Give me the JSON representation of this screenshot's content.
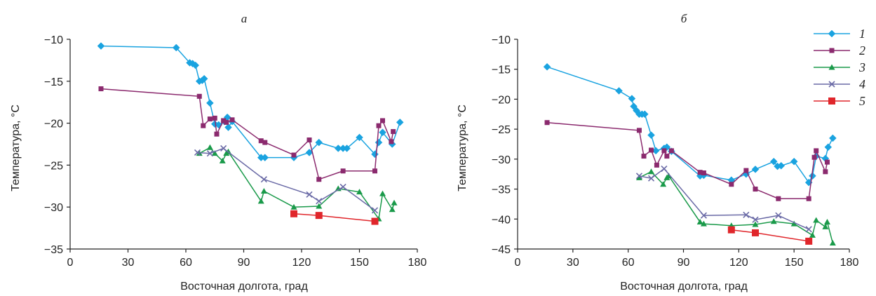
{
  "chart_data": [
    {
      "type": "line",
      "title": "а",
      "xlabel": "Восточная долгота, град",
      "ylabel": "Температура, °С",
      "xlim": [
        0,
        180
      ],
      "ylim": [
        -35,
        -10
      ],
      "xticks": [
        "0",
        "30",
        "60",
        "90",
        "120",
        "150",
        "180"
      ],
      "yticks": [
        "−35",
        "−30",
        "−25",
        "−20",
        "−15",
        "−10"
      ],
      "grid": false,
      "series": [
        {
          "name": "1",
          "color": "#1aa3e0",
          "marker": "diamond",
          "x": [
            16,
            55,
            62,
            63.5,
            65,
            67,
            68.5,
            69.5,
            72.5,
            75,
            77,
            80,
            81.5,
            82,
            84,
            99,
            101,
            116,
            124,
            129,
            139,
            141.5,
            143.5,
            150,
            158,
            160,
            162,
            167,
            171
          ],
          "y": [
            -10.8,
            -11,
            -12.8,
            -12.9,
            -13.1,
            -15,
            -14.9,
            -14.7,
            -17.6,
            -20.1,
            -20.2,
            -19.8,
            -19.3,
            -20.5,
            -19.8,
            -24.1,
            -24.1,
            -24.1,
            -23.5,
            -22.3,
            -23,
            -23,
            -23,
            -21.7,
            -23.7,
            -22.3,
            -21.1,
            -22.5,
            -19.9
          ]
        },
        {
          "name": "2",
          "color": "#8b2a6e",
          "marker": "square",
          "x": [
            16,
            67,
            69,
            72.5,
            75,
            76,
            79.5,
            81,
            84,
            99,
            101,
            116,
            124,
            129,
            141.5,
            158,
            160,
            162,
            166.5,
            167.5
          ],
          "y": [
            -15.9,
            -16.8,
            -20.3,
            -19.5,
            -19.4,
            -21.3,
            -19.7,
            -19.9,
            -19.6,
            -22.1,
            -22.3,
            -23.8,
            -22,
            -26.7,
            -25.7,
            -25.7,
            -20.3,
            -19.7,
            -22.2,
            -21
          ],
          "values_note": ""
        },
        {
          "name": "3",
          "color": "#1a9a4a",
          "marker": "triangle",
          "x": [
            67,
            72.5,
            75,
            79,
            81,
            82,
            99,
            100.5,
            116,
            129,
            139,
            150,
            160,
            162,
            167,
            168
          ],
          "y": [
            -23.6,
            -22.9,
            -23.6,
            -24.5,
            -23.6,
            -23.4,
            -29.3,
            -28.1,
            -30,
            -29.9,
            -27.8,
            -28.2,
            -31.4,
            -28.4,
            -30.3,
            -29.5
          ]
        },
        {
          "name": "4",
          "color": "#6a6aa6",
          "marker": "x",
          "x": [
            66,
            72.5,
            79.5,
            100.5,
            124,
            129,
            141.5,
            158
          ],
          "y": [
            -23.5,
            -23.6,
            -23,
            -26.7,
            -28.5,
            -29.3,
            -27.6,
            -30.4
          ]
        },
        {
          "name": "5",
          "color": "#e0262b",
          "marker": "square-big",
          "x": [
            116,
            129,
            158
          ],
          "y": [
            -30.8,
            -31,
            -31.7
          ]
        }
      ]
    },
    {
      "type": "line",
      "title": "б",
      "xlabel": "Восточная долгота, град",
      "ylabel": "Температура, °С",
      "xlim": [
        0,
        180
      ],
      "ylim": [
        -45,
        -10
      ],
      "xticks": [
        "0",
        "30",
        "60",
        "90",
        "120",
        "150",
        "180"
      ],
      "yticks": [
        "−45",
        "−40",
        "−35",
        "−30",
        "−25",
        "−20",
        "−15",
        "−10"
      ],
      "grid": false,
      "legend_position": "top-right",
      "series": [
        {
          "name": "1",
          "color": "#1aa3e0",
          "marker": "diamond",
          "x": [
            16,
            55,
            62,
            63,
            64.5,
            66,
            67.5,
            69,
            72.5,
            75,
            79.5,
            81,
            83.5,
            99,
            101,
            116,
            124,
            129,
            139,
            141,
            143,
            150,
            158,
            160,
            162,
            167,
            168.5,
            171
          ],
          "y": [
            -14.6,
            -18.6,
            -19.9,
            -21.2,
            -21.9,
            -22.5,
            -22.5,
            -22.5,
            -26,
            -28.6,
            -28.2,
            -28,
            -28.7,
            -32.8,
            -32.7,
            -33.5,
            -32.5,
            -31.7,
            -30.4,
            -31.2,
            -31.1,
            -30.4,
            -33.9,
            -32.8,
            -29.5,
            -29.9,
            -28,
            -26.5
          ]
        },
        {
          "name": "2",
          "color": "#8b2a6e",
          "marker": "square",
          "x": [
            16,
            66,
            68.5,
            72.5,
            75.5,
            79.5,
            81,
            83.5,
            99,
            101,
            116,
            124,
            129,
            141.5,
            158,
            161,
            162,
            167,
            168
          ],
          "y": [
            -23.9,
            -25.2,
            -29.5,
            -28.5,
            -31,
            -28.6,
            -29.5,
            -28.6,
            -32.2,
            -32.3,
            -34.2,
            -31.9,
            -35,
            -36.6,
            -36.6,
            -29.7,
            -28.6,
            -32.1,
            -30.5
          ]
        },
        {
          "name": "3",
          "color": "#1a9a4a",
          "marker": "triangle",
          "x": [
            66,
            72.5,
            79,
            81,
            82,
            99,
            101,
            116,
            129,
            139,
            150,
            160,
            162,
            167,
            168,
            171
          ],
          "y": [
            -33.1,
            -32.1,
            -34.2,
            -33.1,
            -32.8,
            -40.5,
            -40.8,
            -41.1,
            -40.9,
            -40.4,
            -40.8,
            -42.7,
            -40.2,
            -41.3,
            -40.5,
            -44
          ]
        },
        {
          "name": "4",
          "color": "#6a6aa6",
          "marker": "x",
          "x": [
            66,
            72.5,
            79.5,
            101,
            124,
            129,
            141.5,
            158
          ],
          "y": [
            -32.8,
            -33.2,
            -31.6,
            -39.4,
            -39.3,
            -40.1,
            -39.4,
            -41.7
          ]
        },
        {
          "name": "5",
          "color": "#e0262b",
          "marker": "square-big",
          "x": [
            116,
            129,
            158
          ],
          "y": [
            -41.8,
            -42.3,
            -43.7
          ]
        }
      ]
    }
  ]
}
